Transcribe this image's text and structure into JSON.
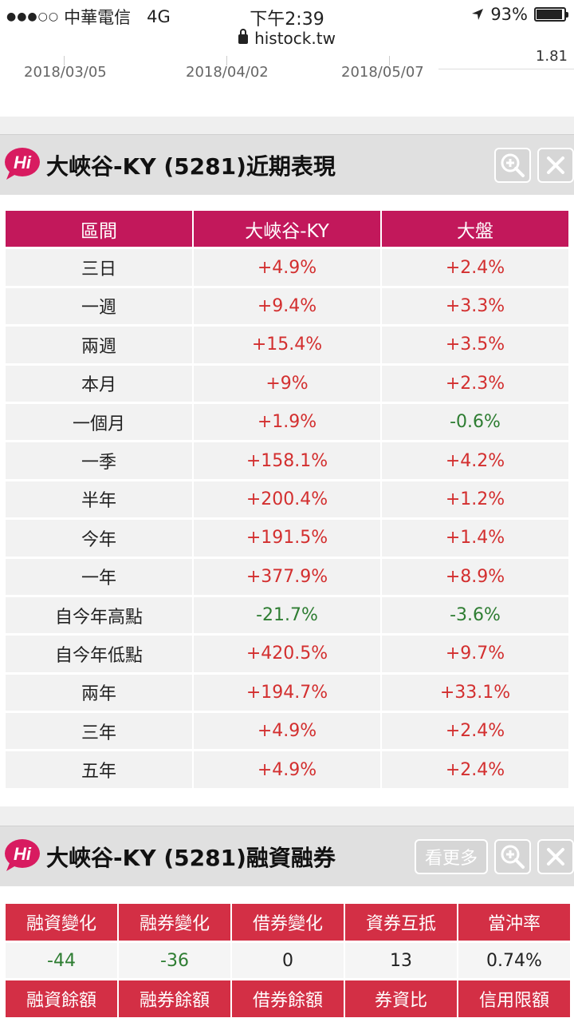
{
  "status_bar": {
    "carrier": "中華電信",
    "network": "4G",
    "time": "下午2:39",
    "url": "histock.tw",
    "battery": "93%",
    "battery_level": 0.93
  },
  "chart_tail": {
    "dates": [
      "2018/03/05",
      "2018/04/02",
      "2018/05/07"
    ],
    "top_value": "1.81"
  },
  "performance": {
    "title": "大峽谷-KY (5281)近期表現",
    "headers": [
      "區間",
      "大峽谷-KY",
      "大盤"
    ],
    "rows": [
      {
        "period": "三日",
        "stock": "+4.9%",
        "market": "+2.4%"
      },
      {
        "period": "一週",
        "stock": "+9.4%",
        "market": "+3.3%"
      },
      {
        "period": "兩週",
        "stock": "+15.4%",
        "market": "+3.5%"
      },
      {
        "period": "本月",
        "stock": "+9%",
        "market": "+2.3%"
      },
      {
        "period": "一個月",
        "stock": "+1.9%",
        "market": "-0.6%"
      },
      {
        "period": "一季",
        "stock": "+158.1%",
        "market": "+4.2%"
      },
      {
        "period": "半年",
        "stock": "+200.4%",
        "market": "+1.2%"
      },
      {
        "period": "今年",
        "stock": "+191.5%",
        "market": "+1.4%"
      },
      {
        "period": "一年",
        "stock": "+377.9%",
        "market": "+8.9%"
      },
      {
        "period": "自今年高點",
        "stock": "-21.7%",
        "market": "-3.6%"
      },
      {
        "period": "自今年低點",
        "stock": "+420.5%",
        "market": "+9.7%"
      },
      {
        "period": "兩年",
        "stock": "+194.7%",
        "market": "+33.1%"
      },
      {
        "period": "三年",
        "stock": "+4.9%",
        "market": "+2.4%"
      },
      {
        "period": "五年",
        "stock": "+4.9%",
        "market": "+2.4%"
      }
    ]
  },
  "margin": {
    "title": "大峽谷-KY (5281)融資融券",
    "more_label": "看更多",
    "headers1": [
      "融資變化",
      "融券變化",
      "借券變化",
      "資券互抵",
      "當沖率"
    ],
    "values1": [
      "-44",
      "-36",
      "0",
      "13",
      "0.74%"
    ],
    "headers2": [
      "融資餘額",
      "融券餘額",
      "借券餘額",
      "券資比",
      "信用限額"
    ]
  },
  "colors": {
    "header_magenta": "#c2185b",
    "header_red": "#d32f45",
    "positive": "#d32f2f",
    "negative": "#2e7d32",
    "logo": "#d81b60"
  }
}
